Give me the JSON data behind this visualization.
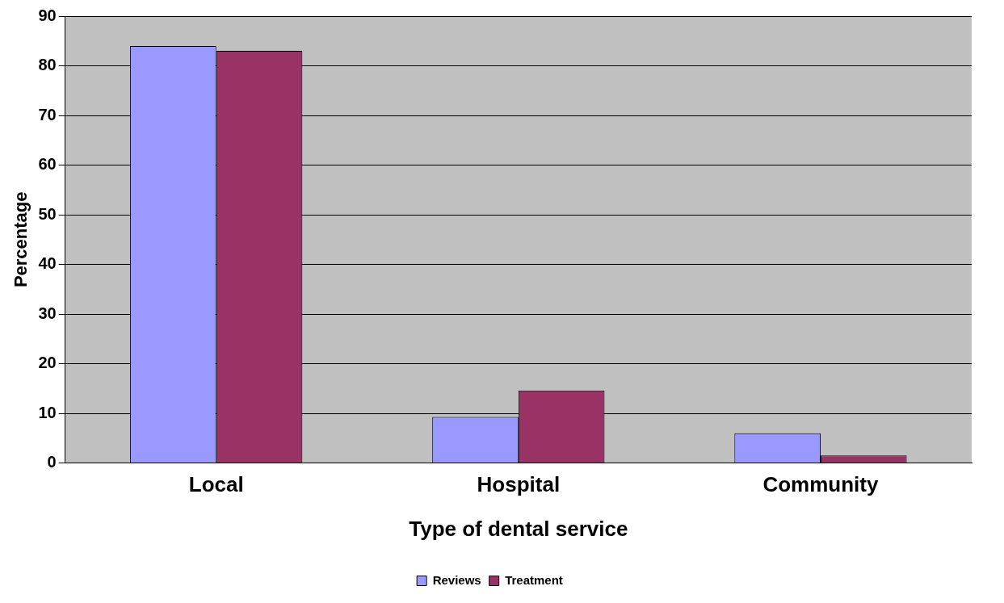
{
  "chart_data": {
    "type": "bar",
    "xlabel": "Type of dental service",
    "ylabel": "Percentage",
    "categories": [
      "Local",
      "Hospital",
      "Community"
    ],
    "series": [
      {
        "name": "Reviews",
        "color": "#9999ff",
        "values": [
          84,
          9.3,
          6
        ]
      },
      {
        "name": "Treatment",
        "color": "#993366",
        "values": [
          83,
          14.6,
          1.5
        ]
      }
    ],
    "ylim": [
      0,
      90
    ],
    "yticks": [
      0,
      10,
      20,
      30,
      40,
      50,
      60,
      70,
      80,
      90
    ],
    "grid": "y",
    "legend": "bottom"
  }
}
